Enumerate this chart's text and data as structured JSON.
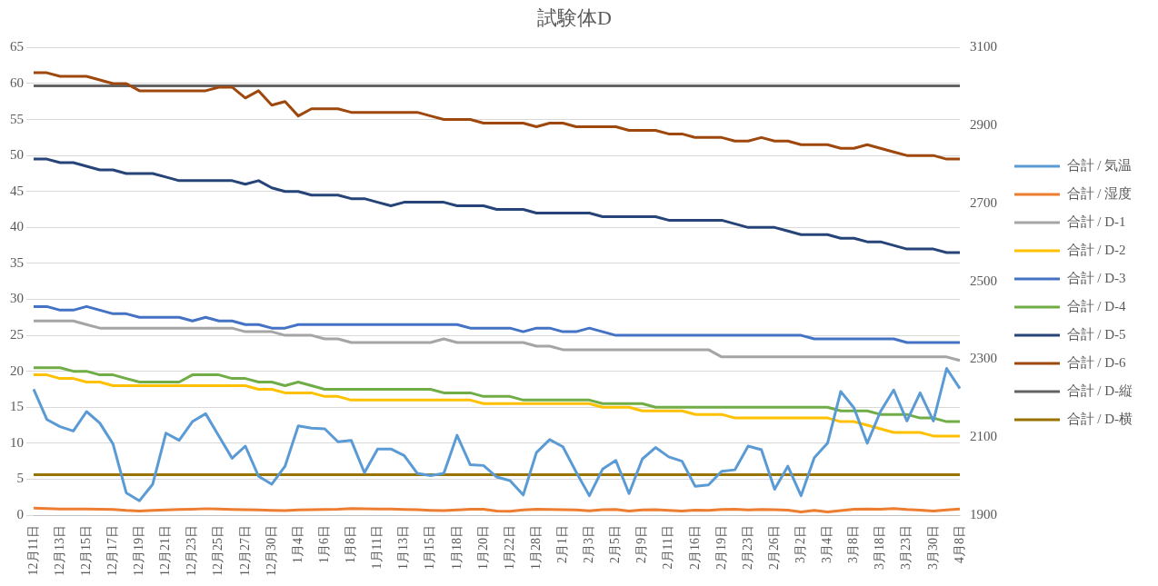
{
  "chart_data": {
    "type": "line",
    "title": "試験体D",
    "categories": [
      "12月11日",
      null,
      "12月13日",
      null,
      "12月15日",
      null,
      "12月17日",
      null,
      "12月19日",
      null,
      "12月21日",
      null,
      "12月23日",
      null,
      "12月25日",
      null,
      "12月27日",
      null,
      "12月30日",
      null,
      "1月4日",
      null,
      "1月6日",
      null,
      "1月8日",
      null,
      "1月11日",
      null,
      "1月13日",
      null,
      "1月15日",
      null,
      "1月18日",
      null,
      "1月20日",
      null,
      "1月22日",
      null,
      "1月28日",
      null,
      "2月1日",
      null,
      "2月3日",
      null,
      "2月5日",
      null,
      "2月9日",
      null,
      "2月11日",
      null,
      "2月16日",
      null,
      "2月19日",
      null,
      "2月23日",
      null,
      "2月26日",
      null,
      "3月2日",
      null,
      "3月4日",
      null,
      "3月8日",
      null,
      "3月18日",
      null,
      "3月23日",
      null,
      "3月30日",
      null,
      "4月8日"
    ],
    "series": [
      {
        "name": "合計 / 気温",
        "color": "#5b9bd5",
        "values": [
          17.5,
          13.3,
          12.3,
          11.7,
          14.4,
          12.8,
          9.9,
          3.1,
          2,
          4.3,
          11.4,
          10.4,
          13,
          14.1,
          11,
          7.9,
          9.6,
          5.4,
          4.3,
          6.8,
          12.4,
          12.1,
          12,
          10.2,
          10.4,
          5.9,
          9.2,
          9.2,
          8.3,
          5.8,
          5.5,
          5.8,
          11.1,
          7,
          6.9,
          5.3,
          4.8,
          2.8,
          8.7,
          10.5,
          9.5,
          6,
          2.7,
          6.4,
          7.6,
          3,
          7.8,
          9.4,
          8.1,
          7.5,
          4,
          4.2,
          6.1,
          6.3,
          9.6,
          9.1,
          3.6,
          6.8,
          2.7,
          8,
          10,
          17.2,
          14.9,
          10,
          14.4,
          17.4,
          13.1,
          17,
          13.1,
          20.4,
          17.6
        ]
      },
      {
        "name": "合計 / 湿度",
        "color": "#ed7d31",
        "values": [
          0.98,
          0.93,
          0.86,
          0.84,
          0.86,
          0.81,
          0.78,
          0.65,
          0.57,
          0.67,
          0.73,
          0.79,
          0.83,
          0.9,
          0.86,
          0.8,
          0.75,
          0.73,
          0.66,
          0.62,
          0.72,
          0.75,
          0.78,
          0.83,
          0.93,
          0.88,
          0.84,
          0.86,
          0.79,
          0.75,
          0.67,
          0.63,
          0.73,
          0.81,
          0.82,
          0.56,
          0.55,
          0.73,
          0.83,
          0.8,
          0.76,
          0.73,
          0.59,
          0.75,
          0.79,
          0.58,
          0.72,
          0.77,
          0.66,
          0.58,
          0.7,
          0.67,
          0.78,
          0.81,
          0.74,
          0.78,
          0.77,
          0.69,
          0.43,
          0.65,
          0.45,
          0.64,
          0.83,
          0.86,
          0.83,
          0.93,
          0.78,
          0.69,
          0.58,
          0.73,
          0.85
        ]
      },
      {
        "name": "合計 / D-1",
        "color": "#a5a5a5",
        "values": [
          27,
          27,
          27,
          27,
          26.5,
          26,
          26,
          26,
          26,
          26,
          26,
          26,
          26,
          26,
          26,
          26,
          25.5,
          25.5,
          25.5,
          25,
          25,
          25,
          24.5,
          24.5,
          24,
          24,
          24,
          24,
          24,
          24,
          24,
          24.5,
          24,
          24,
          24,
          24,
          24,
          24,
          23.5,
          23.5,
          23,
          23,
          23,
          23,
          23,
          23,
          23,
          23,
          23,
          23,
          23,
          23,
          22,
          22,
          22,
          22,
          22,
          22,
          22,
          22,
          22,
          22,
          22,
          22,
          22,
          22,
          22,
          22,
          22,
          22,
          21.5
        ]
      },
      {
        "name": "合計 / D-2",
        "color": "#ffc000",
        "values": [
          19.5,
          19.5,
          19,
          19,
          18.5,
          18.5,
          18,
          18,
          18,
          18,
          18,
          18,
          18,
          18,
          18,
          18,
          18,
          17.5,
          17.5,
          17,
          17,
          17,
          16.5,
          16.5,
          16,
          16,
          16,
          16,
          16,
          16,
          16,
          16,
          16,
          16,
          15.5,
          15.5,
          15.5,
          15.5,
          15.5,
          15.5,
          15.5,
          15.5,
          15.5,
          15,
          15,
          15,
          14.5,
          14.5,
          14.5,
          14.5,
          14,
          14,
          14,
          13.5,
          13.5,
          13.5,
          13.5,
          13.5,
          13.5,
          13.5,
          13.5,
          13,
          13,
          12.5,
          12,
          11.5,
          11.5,
          11.5,
          11,
          11,
          11
        ]
      },
      {
        "name": "合計 / D-3",
        "color": "#4472c4",
        "values": [
          29,
          29,
          28.5,
          28.5,
          29,
          28.5,
          28,
          28,
          27.5,
          27.5,
          27.5,
          27.5,
          27,
          27.5,
          27,
          27,
          26.5,
          26.5,
          26,
          26,
          26.5,
          26.5,
          26.5,
          26.5,
          26.5,
          26.5,
          26.5,
          26.5,
          26.5,
          26.5,
          26.5,
          26.5,
          26.5,
          26,
          26,
          26,
          26,
          25.5,
          26,
          26,
          25.5,
          25.5,
          26,
          25.5,
          25,
          25,
          25,
          25,
          25,
          25,
          25,
          25,
          25,
          25,
          25,
          25,
          25,
          25,
          25,
          24.5,
          24.5,
          24.5,
          24.5,
          24.5,
          24.5,
          24.5,
          24,
          24,
          24,
          24,
          24
        ]
      },
      {
        "name": "合計 / D-4",
        "color": "#70ad47",
        "values": [
          20.5,
          20.5,
          20.5,
          20,
          20,
          19.5,
          19.5,
          19,
          18.5,
          18.5,
          18.5,
          18.5,
          19.5,
          19.5,
          19.5,
          19,
          19,
          18.5,
          18.5,
          18,
          18.5,
          18,
          17.5,
          17.5,
          17.5,
          17.5,
          17.5,
          17.5,
          17.5,
          17.5,
          17.5,
          17,
          17,
          17,
          16.5,
          16.5,
          16.5,
          16,
          16,
          16,
          16,
          16,
          16,
          15.5,
          15.5,
          15.5,
          15.5,
          15,
          15,
          15,
          15,
          15,
          15,
          15,
          15,
          15,
          15,
          15,
          15,
          15,
          15,
          14.5,
          14.5,
          14.5,
          14,
          14,
          14,
          13.5,
          13.5,
          13,
          13
        ]
      },
      {
        "name": "合計 / D-5",
        "color": "#264478",
        "values": [
          49.5,
          49.5,
          49,
          49,
          48.5,
          48,
          48,
          47.5,
          47.5,
          47.5,
          47,
          46.5,
          46.5,
          46.5,
          46.5,
          46.5,
          46,
          46.5,
          45.5,
          45,
          45,
          44.5,
          44.5,
          44.5,
          44,
          44,
          43.5,
          43,
          43.5,
          43.5,
          43.5,
          43.5,
          43,
          43,
          43,
          42.5,
          42.5,
          42.5,
          42,
          42,
          42,
          42,
          42,
          41.5,
          41.5,
          41.5,
          41.5,
          41.5,
          41,
          41,
          41,
          41,
          41,
          40.5,
          40,
          40,
          40,
          39.5,
          39,
          39,
          39,
          38.5,
          38.5,
          38,
          38,
          37.5,
          37,
          37,
          37,
          36.5,
          36.5
        ]
      },
      {
        "name": "合計 / D-6",
        "color": "#9e480e",
        "values": [
          61.5,
          61.5,
          61,
          61,
          61,
          60.5,
          60,
          60,
          59,
          59,
          59,
          59,
          59,
          59,
          59.5,
          59.5,
          58,
          59,
          57,
          57.5,
          55.5,
          56.5,
          56.5,
          56.5,
          56,
          56,
          56,
          56,
          56,
          56,
          55.5,
          55,
          55,
          55,
          54.5,
          54.5,
          54.5,
          54.5,
          54,
          54.5,
          54.5,
          54,
          54,
          54,
          54,
          53.5,
          53.5,
          53.5,
          53,
          53,
          52.5,
          52.5,
          52.5,
          52,
          52,
          52.5,
          52,
          52,
          51.5,
          51.5,
          51.5,
          51,
          51,
          51.5,
          51,
          50.5,
          50,
          50,
          50,
          49.5,
          49.5
        ]
      },
      {
        "name": "合計 / D-縦",
        "color": "#636363",
        "axis": "y2",
        "values": [
          3002,
          3002,
          3002,
          3002,
          3002,
          3002,
          3002,
          3002,
          3002,
          3002,
          3002,
          3002,
          3002,
          3002,
          3002,
          3002,
          3002,
          3002,
          3002,
          3002,
          3002,
          3002,
          3002,
          3002,
          3002,
          3002,
          3002,
          3002,
          3002,
          3002,
          3002,
          3002,
          3002,
          3002,
          3002,
          3002,
          3002,
          3002,
          3002,
          3002,
          3002,
          3002,
          3002,
          3002,
          3002,
          3002,
          3002,
          3002,
          3002,
          3002,
          3002,
          3002,
          3002,
          3002,
          3002,
          3002,
          3002,
          3002,
          3002,
          3002,
          3002,
          3002,
          3002,
          3002,
          3002,
          3002,
          3002,
          3002,
          3002,
          3002,
          3002
        ]
      },
      {
        "name": "合計 / D-横",
        "color": "#997300",
        "axis": "y2",
        "values": [
          2004,
          2004,
          2004,
          2004,
          2004,
          2004,
          2004,
          2004,
          2004,
          2004,
          2004,
          2004,
          2004,
          2004,
          2004,
          2004,
          2004,
          2004,
          2004,
          2004,
          2004,
          2004,
          2004,
          2004,
          2004,
          2004,
          2004,
          2004,
          2004,
          2004,
          2004,
          2004,
          2004,
          2004,
          2004,
          2004,
          2004,
          2004,
          2004,
          2004,
          2004,
          2004,
          2004,
          2004,
          2004,
          2004,
          2004,
          2004,
          2004,
          2004,
          2004,
          2004,
          2004,
          2004,
          2004,
          2004,
          2004,
          2004,
          2004,
          2004,
          2004,
          2004,
          2004,
          2004,
          2004,
          2004,
          2004,
          2004,
          2004,
          2004,
          2004
        ]
      }
    ],
    "ylim": [
      0,
      65
    ],
    "yticks": [
      0,
      5,
      10,
      15,
      20,
      25,
      30,
      35,
      40,
      45,
      50,
      55,
      60,
      65
    ],
    "y2lim": [
      1900,
      3100
    ],
    "y2ticks": [
      1900,
      2100,
      2300,
      2500,
      2700,
      2900,
      3100
    ],
    "grid": "y",
    "legend": "right",
    "marker": "none"
  }
}
